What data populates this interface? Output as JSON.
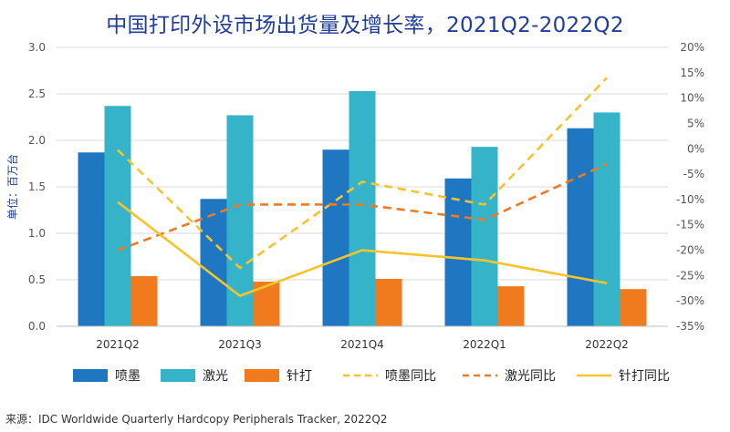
{
  "chart_data": {
    "type": "bar",
    "title": "中国打印外设市场出货量及增长率，2021Q2-2022Q2",
    "ylabel": "单位：百万台",
    "categories": [
      "2021Q2",
      "2021Q3",
      "2021Q4",
      "2022Q1",
      "2022Q2"
    ],
    "ylim": [
      0,
      3.0
    ],
    "yticks": [
      "0.0",
      "0.5",
      "1.0",
      "1.5",
      "2.0",
      "2.5",
      "3.0"
    ],
    "y2lim": [
      -35,
      20
    ],
    "y2ticks": [
      "-35%",
      "-30%",
      "-25%",
      "-20%",
      "-15%",
      "-10%",
      "-5%",
      "0%",
      "5%",
      "10%",
      "15%",
      "20%"
    ],
    "bar_series": [
      {
        "name": "喷墨",
        "color": "#1f77c2",
        "values": [
          1.87,
          1.37,
          1.9,
          1.59,
          2.13
        ]
      },
      {
        "name": "激光",
        "color": "#35b4c9",
        "values": [
          2.37,
          2.27,
          2.53,
          1.93,
          2.3
        ]
      },
      {
        "name": "针打",
        "color": "#f07a1e",
        "values": [
          0.54,
          0.48,
          0.51,
          0.43,
          0.4
        ]
      }
    ],
    "line_series": [
      {
        "name": "喷墨同比",
        "color": "#f5c42a",
        "dashed": true,
        "values": [
          -0.2,
          -23.5,
          -6.5,
          -11.0,
          14.0
        ]
      },
      {
        "name": "激光同比",
        "color": "#f07a1e",
        "dashed": true,
        "values": [
          -20.0,
          -11.0,
          -11.0,
          -14.0,
          -3.0
        ]
      },
      {
        "name": "针打同比",
        "color": "#f5c42a",
        "dashed": false,
        "values": [
          -10.5,
          -29.0,
          -20.0,
          -22.0,
          -26.5
        ]
      }
    ],
    "grid": true,
    "legend": "bottom"
  },
  "source": "来源：IDC Worldwide Quarterly Hardcopy Peripherals Tracker, 2022Q2"
}
